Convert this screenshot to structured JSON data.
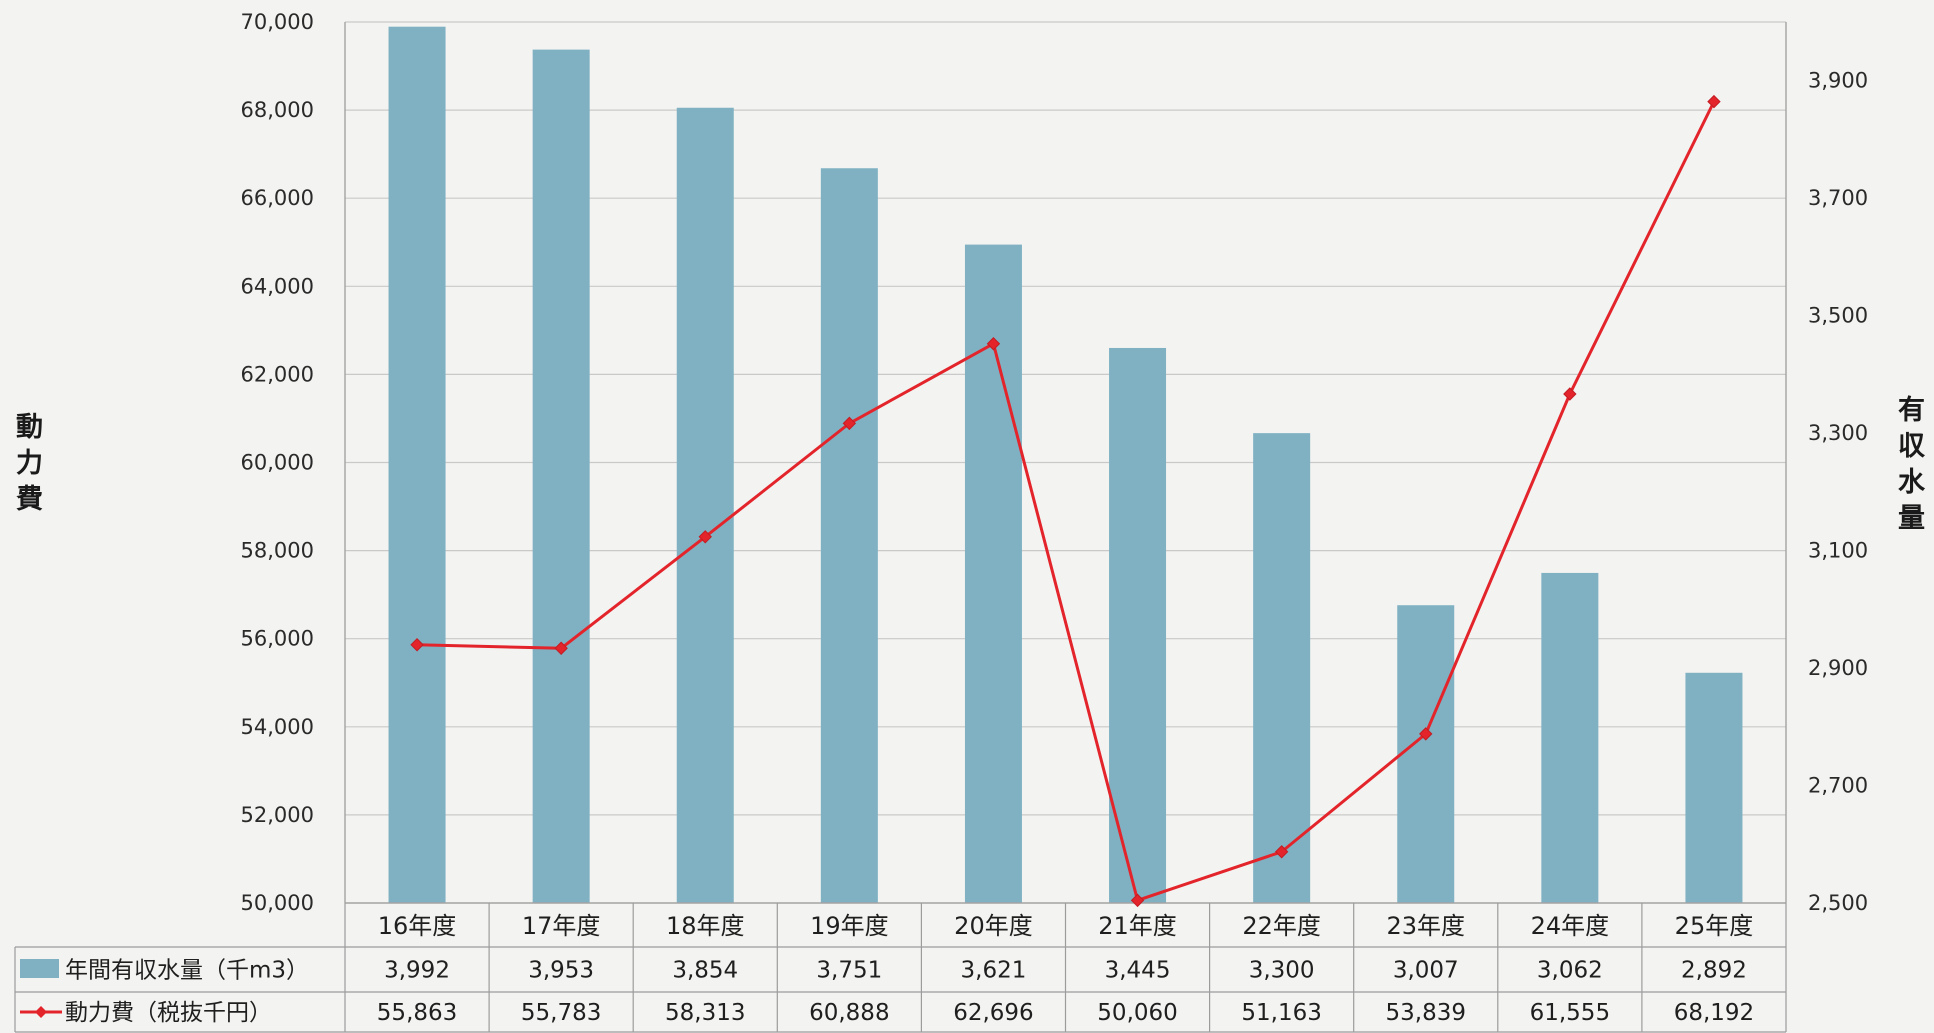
{
  "chart_data": {
    "type": "bar",
    "categories": [
      "16年度",
      "17年度",
      "18年度",
      "19年度",
      "20年度",
      "21年度",
      "22年度",
      "23年度",
      "24年度",
      "25年度"
    ],
    "series": [
      {
        "name": "年間有収水量（千m3）",
        "type": "bar",
        "axis": "right",
        "values": [
          3992,
          3953,
          3854,
          3751,
          3621,
          3445,
          3300,
          3007,
          3062,
          2892
        ]
      },
      {
        "name": "動力費（税抜千円）",
        "type": "line",
        "axis": "left",
        "marker": "diamond",
        "values": [
          55863,
          55783,
          58313,
          60888,
          62696,
          50060,
          51163,
          53839,
          61555,
          68192
        ]
      }
    ],
    "y_left": {
      "label": "動力費",
      "min": 50000,
      "max": 70000,
      "ticks": [
        50000,
        52000,
        54000,
        56000,
        58000,
        60000,
        62000,
        64000,
        66000,
        68000,
        70000
      ]
    },
    "y_right": {
      "label": "有収水量",
      "min": 2500,
      "max": 4000,
      "ticks": [
        2500,
        2700,
        2900,
        3100,
        3300,
        3500,
        3700,
        3900
      ]
    },
    "grid": true,
    "legend": "data-table-below",
    "colors": {
      "bar": "#7fb1c3",
      "line": "#e3242b",
      "grid": "#c9c9c9",
      "axis": "#a3a3a3",
      "table_border": "#9c9c9c"
    }
  }
}
